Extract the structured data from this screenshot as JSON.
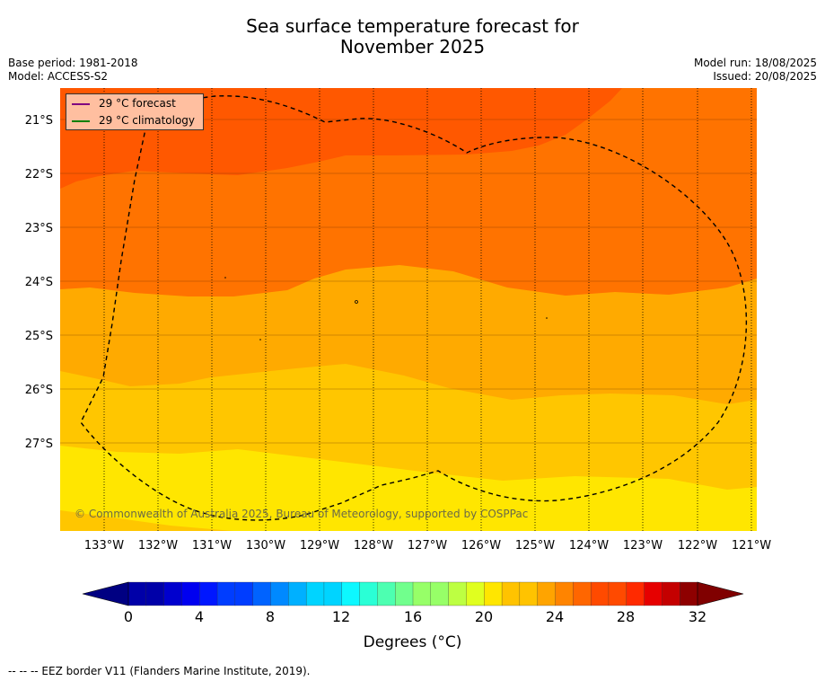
{
  "title_line1": "Sea surface temperature forecast for",
  "title_line2": "November 2025",
  "meta_left": [
    "Base period: 1981-2018",
    "Model: ACCESS-S2"
  ],
  "meta_right": [
    "Model run: 18/08/2025",
    "Issued: 20/08/2025"
  ],
  "legend": [
    {
      "label": "29 °C  forecast",
      "color": "#800080"
    },
    {
      "label": "29 °C  climatology",
      "color": "#008000"
    }
  ],
  "latitude_labels": [
    "21°S",
    "22°S",
    "23°S",
    "24°S",
    "25°S",
    "26°S",
    "27°S"
  ],
  "longitude_labels": [
    "133°W",
    "132°W",
    "131°W",
    "130°W",
    "129°W",
    "128°W",
    "127°W",
    "126°W",
    "125°W",
    "124°W",
    "123°W",
    "122°W",
    "121°W"
  ],
  "copyright": "© Commonwealth of Australia 2025, Bureau of Meteorology, supported by COSPPac",
  "colorbar": {
    "ticks": [
      "0",
      "4",
      "8",
      "12",
      "16",
      "20",
      "24",
      "28",
      "32"
    ],
    "label": "Degrees (°C)",
    "colors": [
      "#000082",
      "#0000a8",
      "#0000ce",
      "#0000f0",
      "#0017ff",
      "#003dff",
      "#0063ff",
      "#0089ff",
      "#00b0ff",
      "#00d4ff",
      "#0df8ff",
      "#2affd6",
      "#4dffb1",
      "#71ff8d",
      "#97ff68",
      "#bdff42",
      "#e0ff1f",
      "#ffe600",
      "#ffc300",
      "#ffa400",
      "#ff8400",
      "#ff6600",
      "#ff4a00",
      "#ff2a00",
      "#e60000",
      "#c40000",
      "#8e0000",
      "#800000"
    ]
  },
  "footnote": "-- -- -- EEZ border V11 (Flanders Marine Institute, 2019).",
  "map_colors": {
    "band_27_28": "#ff7300",
    "band_28_29": "#ff5800",
    "band_26_27": "#ff9d00",
    "band_25_26": "#ffaa00",
    "band_24_25": "#ffc600",
    "band_23_24": "#ffe600"
  }
}
